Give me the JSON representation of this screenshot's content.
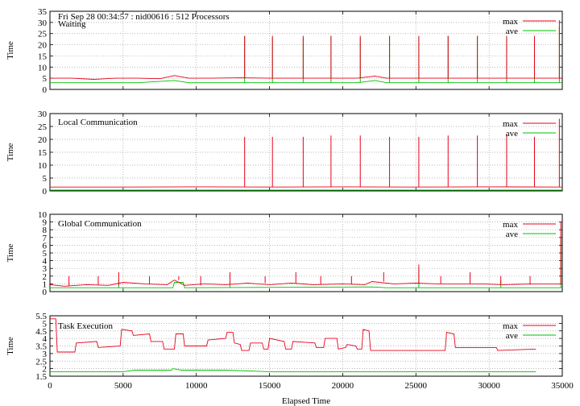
{
  "header": "Fri Sep 28 00:34:57 : nid00616 : 512 Processors",
  "xlabel": "Elapsed Time",
  "colors": {
    "max": "#e8001c",
    "ave": "#00c000",
    "grid": "#a0a0a0"
  },
  "chart_data": [
    {
      "type": "line",
      "title": "Waiting",
      "ylabel": "Time",
      "xlim": [
        0,
        35000
      ],
      "ylim": [
        0,
        35
      ],
      "yticks": [
        0,
        5,
        10,
        15,
        20,
        25,
        30,
        35
      ],
      "xticks": [
        0,
        5000,
        10000,
        15000,
        20000,
        25000,
        30000,
        35000
      ],
      "legend": "top-right",
      "series": [
        {
          "name": "max",
          "base": [
            [
              0,
              5
            ],
            [
              1500,
              5
            ],
            [
              3000,
              4.5
            ],
            [
              4500,
              5
            ],
            [
              6000,
              5
            ],
            [
              7500,
              4.8
            ],
            [
              8500,
              6.2
            ],
            [
              9500,
              5
            ],
            [
              11000,
              5
            ],
            [
              13000,
              5.2
            ],
            [
              15000,
              5
            ],
            [
              17000,
              5
            ],
            [
              19000,
              5
            ],
            [
              21000,
              5
            ],
            [
              22200,
              6
            ],
            [
              23000,
              5
            ],
            [
              25000,
              5
            ],
            [
              27000,
              5
            ],
            [
              29000,
              5
            ],
            [
              31000,
              5
            ],
            [
              33000,
              5
            ],
            [
              35000,
              5
            ]
          ],
          "spikes": [
            [
              13300,
              24
            ],
            [
              15200,
              24
            ],
            [
              17300,
              24
            ],
            [
              19200,
              24
            ],
            [
              21200,
              24
            ],
            [
              23200,
              24
            ],
            [
              25200,
              24
            ],
            [
              27200,
              24
            ],
            [
              29200,
              24
            ],
            [
              31200,
              24
            ],
            [
              33100,
              24
            ],
            [
              34800,
              31
            ]
          ]
        },
        {
          "name": "ave",
          "base": [
            [
              0,
              3
            ],
            [
              3000,
              3
            ],
            [
              6000,
              3
            ],
            [
              8500,
              4
            ],
            [
              9500,
              3
            ],
            [
              13000,
              3
            ],
            [
              17000,
              3
            ],
            [
              21000,
              3
            ],
            [
              22200,
              4
            ],
            [
              23000,
              3
            ],
            [
              27000,
              3
            ],
            [
              31000,
              3
            ],
            [
              35000,
              3
            ]
          ],
          "spikes": [
            [
              13300,
              24
            ],
            [
              15200,
              23
            ],
            [
              17300,
              23
            ],
            [
              19200,
              24
            ],
            [
              21200,
              23
            ],
            [
              23200,
              24
            ],
            [
              25200,
              23
            ],
            [
              27200,
              24
            ],
            [
              29200,
              24
            ],
            [
              31200,
              23
            ],
            [
              33100,
              22
            ],
            [
              34800,
              28
            ]
          ]
        }
      ]
    },
    {
      "type": "line",
      "title": "Local Communication",
      "ylabel": "Time",
      "xlim": [
        0,
        35000
      ],
      "ylim": [
        0,
        30
      ],
      "yticks": [
        0,
        5,
        10,
        15,
        20,
        25,
        30
      ],
      "xticks": [
        0,
        5000,
        10000,
        15000,
        20000,
        25000,
        30000,
        35000
      ],
      "legend": "top-right",
      "series": [
        {
          "name": "max",
          "base": [
            [
              0,
              1.5
            ],
            [
              5000,
              1.5
            ],
            [
              10000,
              1.6
            ],
            [
              15000,
              1.5
            ],
            [
              20000,
              1.6
            ],
            [
              25000,
              1.5
            ],
            [
              30000,
              1.6
            ],
            [
              35000,
              1.5
            ]
          ],
          "spikes": [
            [
              13300,
              21
            ],
            [
              15200,
              21
            ],
            [
              17300,
              21
            ],
            [
              19200,
              21.5
            ],
            [
              21200,
              21.5
            ],
            [
              23200,
              21
            ],
            [
              25200,
              21
            ],
            [
              27200,
              21.5
            ],
            [
              29200,
              21.5
            ],
            [
              31200,
              22
            ],
            [
              33100,
              21
            ],
            [
              34800,
              28
            ]
          ]
        },
        {
          "name": "ave",
          "base": [
            [
              0,
              0.3
            ],
            [
              35000,
              0.3
            ]
          ],
          "spikes": []
        }
      ]
    },
    {
      "type": "line",
      "title": "Global Communication",
      "ylabel": "Time",
      "xlim": [
        0,
        35000
      ],
      "ylim": [
        0,
        10
      ],
      "yticks": [
        0,
        1,
        2,
        3,
        4,
        5,
        6,
        7,
        8,
        9,
        10
      ],
      "xticks": [
        0,
        5000,
        10000,
        15000,
        20000,
        25000,
        30000,
        35000
      ],
      "legend": "top-right",
      "series": [
        {
          "name": "max",
          "base": [
            [
              0,
              0.9
            ],
            [
              1000,
              0.7
            ],
            [
              2500,
              0.9
            ],
            [
              4000,
              0.8
            ],
            [
              5000,
              1.2
            ],
            [
              6500,
              1
            ],
            [
              8000,
              0.9
            ],
            [
              8500,
              1.5
            ],
            [
              9200,
              0.8
            ],
            [
              10500,
              1
            ],
            [
              12000,
              0.9
            ],
            [
              13500,
              1.1
            ],
            [
              15000,
              0.9
            ],
            [
              16500,
              1.1
            ],
            [
              18000,
              0.9
            ],
            [
              20000,
              1
            ],
            [
              21500,
              0.9
            ],
            [
              22000,
              1.3
            ],
            [
              23500,
              1
            ],
            [
              25000,
              1.1
            ],
            [
              26500,
              1
            ],
            [
              28000,
              1
            ],
            [
              29500,
              1
            ],
            [
              31000,
              0.9
            ],
            [
              33000,
              1
            ],
            [
              35000,
              1
            ]
          ],
          "spikes": [
            [
              1300,
              2
            ],
            [
              3300,
              2
            ],
            [
              4700,
              2.5
            ],
            [
              6800,
              2
            ],
            [
              8800,
              2
            ],
            [
              10300,
              2
            ],
            [
              12300,
              2.5
            ],
            [
              14700,
              2
            ],
            [
              16800,
              2.5
            ],
            [
              18500,
              2
            ],
            [
              20600,
              2
            ],
            [
              22800,
              2.5
            ],
            [
              25200,
              3.5
            ],
            [
              26700,
              2
            ],
            [
              28700,
              2.5
            ],
            [
              30800,
              2
            ],
            [
              32800,
              2
            ],
            [
              34900,
              9
            ]
          ]
        },
        {
          "name": "ave",
          "base": [
            [
              0,
              0.5
            ],
            [
              8400,
              0.5
            ],
            [
              8500,
              1.2
            ],
            [
              9100,
              1.2
            ],
            [
              9200,
              0.5
            ],
            [
              22000,
              0.6
            ],
            [
              23000,
              0.5
            ],
            [
              35000,
              0.5
            ]
          ],
          "spikes": [
            [
              4700,
              1.5
            ],
            [
              12300,
              1.5
            ],
            [
              25200,
              3
            ],
            [
              30800,
              1.5
            ],
            [
              34900,
              7
            ]
          ]
        }
      ]
    },
    {
      "type": "line",
      "title": "Task Execution",
      "ylabel": "Time",
      "xlim": [
        0,
        35000
      ],
      "ylim": [
        1.5,
        5.5
      ],
      "yticks": [
        1.5,
        2,
        2.5,
        3,
        3.5,
        4,
        4.5,
        5,
        5.5
      ],
      "xticks": [
        0,
        5000,
        10000,
        15000,
        20000,
        25000,
        30000,
        35000
      ],
      "legend": "top-right",
      "series": [
        {
          "name": "max",
          "base": [
            [
              0,
              5.3
            ],
            [
              400,
              5.3
            ],
            [
              500,
              3.1
            ],
            [
              1700,
              3.1
            ],
            [
              1800,
              3.7
            ],
            [
              3200,
              3.8
            ],
            [
              3300,
              3.4
            ],
            [
              4800,
              3.5
            ],
            [
              4900,
              4.6
            ],
            [
              5600,
              4.5
            ],
            [
              5700,
              4.2
            ],
            [
              6800,
              4.3
            ],
            [
              6900,
              3.8
            ],
            [
              7700,
              3.8
            ],
            [
              7800,
              3.3
            ],
            [
              8500,
              3.3
            ],
            [
              8600,
              4.3
            ],
            [
              9100,
              4.3
            ],
            [
              9200,
              3.5
            ],
            [
              10700,
              3.5
            ],
            [
              10800,
              3.9
            ],
            [
              12000,
              4
            ],
            [
              12100,
              4.4
            ],
            [
              12500,
              4.4
            ],
            [
              12600,
              3.7
            ],
            [
              13000,
              3.6
            ],
            [
              13100,
              3.2
            ],
            [
              13600,
              3.2
            ],
            [
              13700,
              3.7
            ],
            [
              14500,
              3.7
            ],
            [
              14600,
              3.3
            ],
            [
              14900,
              3.3
            ],
            [
              15000,
              4
            ],
            [
              16000,
              3.8
            ],
            [
              16100,
              3.3
            ],
            [
              16500,
              3.3
            ],
            [
              16600,
              3.8
            ],
            [
              18100,
              3.7
            ],
            [
              18200,
              3.4
            ],
            [
              18700,
              3.4
            ],
            [
              18800,
              4
            ],
            [
              19600,
              4
            ],
            [
              19700,
              3.3
            ],
            [
              20200,
              3.4
            ],
            [
              20300,
              3.6
            ],
            [
              20900,
              3.5
            ],
            [
              21000,
              3.3
            ],
            [
              21300,
              3.3
            ],
            [
              21400,
              4.6
            ],
            [
              21800,
              4.5
            ],
            [
              21900,
              3.2
            ],
            [
              27000,
              3.2
            ],
            [
              27100,
              4.4
            ],
            [
              27600,
              4.3
            ],
            [
              27700,
              3.4
            ],
            [
              30500,
              3.4
            ],
            [
              30600,
              3.2
            ],
            [
              33200,
              3.3
            ]
          ],
          "spikes": []
        },
        {
          "name": "ave",
          "base": [
            [
              0,
              1.8
            ],
            [
              5000,
              1.8
            ],
            [
              5800,
              1.9
            ],
            [
              8300,
              1.9
            ],
            [
              8400,
              2
            ],
            [
              9000,
              1.9
            ],
            [
              12000,
              1.9
            ],
            [
              15000,
              1.8
            ],
            [
              21000,
              1.8
            ],
            [
              27000,
              1.8
            ],
            [
              33200,
              1.8
            ]
          ],
          "spikes": []
        }
      ]
    }
  ]
}
